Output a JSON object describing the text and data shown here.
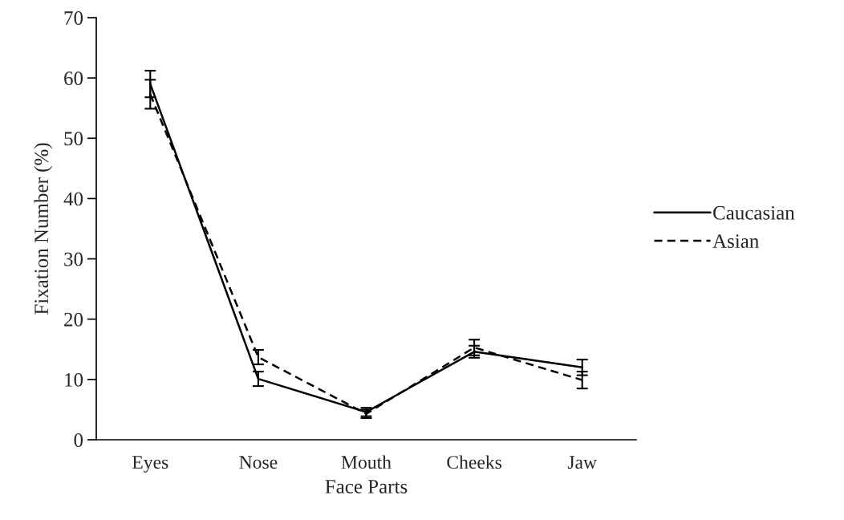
{
  "chart_data": {
    "type": "line",
    "xlabel": "Face Parts",
    "ylabel": "Fixation Number (%)",
    "categories": [
      "Eyes",
      "Nose",
      "Mouth",
      "Cheeks",
      "Jaw"
    ],
    "series": [
      {
        "name": "Caucasian",
        "color": "#000000",
        "line_style": "solid",
        "values": [
          59.0,
          10.1,
          4.6,
          14.6,
          12.0
        ],
        "errors": [
          2.2,
          1.2,
          0.7,
          1.0,
          1.3
        ]
      },
      {
        "name": "Asian",
        "color": "#000000",
        "line_style": "dashed",
        "values": [
          57.3,
          13.7,
          4.3,
          15.3,
          9.9
        ],
        "errors": [
          2.4,
          1.2,
          0.7,
          1.3,
          1.4
        ]
      }
    ],
    "ylim": [
      0,
      70
    ],
    "yticks": [
      0,
      10,
      20,
      30,
      40,
      50,
      60,
      70
    ],
    "grid": false,
    "legend": "right",
    "marker": "none"
  }
}
